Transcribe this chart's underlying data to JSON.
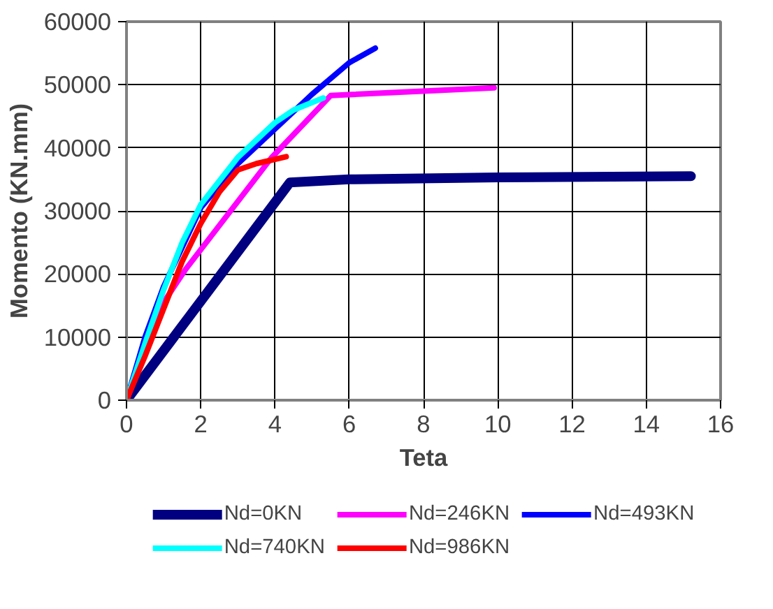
{
  "chart_data": {
    "type": "line",
    "xlabel": "Teta",
    "ylabel": "Momento (KN.mm)",
    "xlim": [
      0,
      16
    ],
    "ylim": [
      0,
      60000
    ],
    "xticks": [
      0,
      2,
      4,
      6,
      8,
      10,
      12,
      14,
      16
    ],
    "yticks": [
      0,
      10000,
      20000,
      30000,
      40000,
      50000,
      60000
    ],
    "grid": true,
    "legend": "bottom",
    "marker": "none",
    "line_style": "solid",
    "series": [
      {
        "name": "Nd=0KN",
        "color": "#000080",
        "x": [
          0,
          4.4,
          6,
          10,
          15.2
        ],
        "values": [
          0,
          34500,
          35000,
          35300,
          35500
        ]
      },
      {
        "name": "Nd=246KN",
        "color": "#ff00ff",
        "x": [
          0,
          1,
          1.6,
          3.9,
          5.5,
          9.9
        ],
        "values": [
          0,
          15500,
          20800,
          38400,
          48300,
          49500
        ]
      },
      {
        "name": "Nd=493KN",
        "color": "#0000ff",
        "x": [
          0,
          0.5,
          1,
          2,
          3,
          4,
          5,
          6,
          6.7
        ],
        "values": [
          0,
          10000,
          18000,
          30500,
          37500,
          43000,
          48500,
          53500,
          55800
        ]
      },
      {
        "name": "Nd=740KN",
        "color": "#00ffff",
        "x": [
          0,
          0.5,
          1,
          1.5,
          2,
          3,
          4,
          4.5,
          5.3
        ],
        "values": [
          0,
          9000,
          17500,
          25000,
          31000,
          38500,
          44000,
          46000,
          47900
        ]
      },
      {
        "name": "Nd=986KN",
        "color": "#ff0000",
        "x": [
          0,
          0.5,
          1,
          1.5,
          2,
          2.5,
          3,
          3.5,
          4.3
        ],
        "values": [
          0,
          7000,
          14500,
          22000,
          28000,
          33000,
          36500,
          37500,
          38600
        ]
      }
    ]
  }
}
